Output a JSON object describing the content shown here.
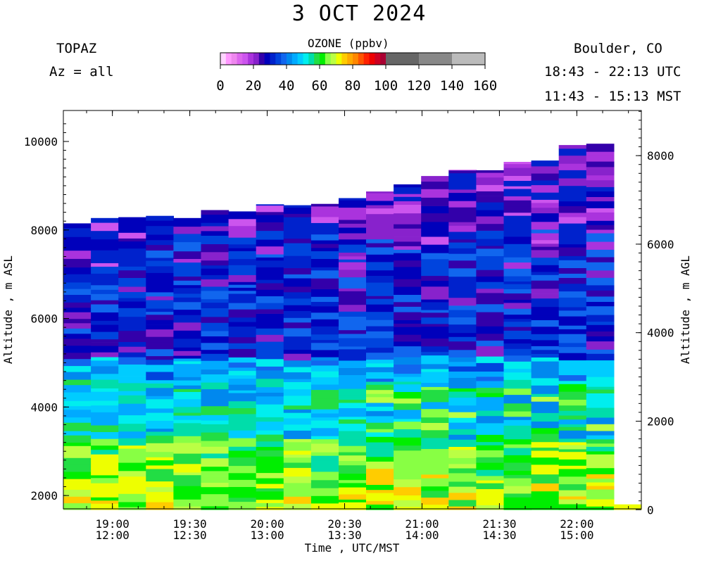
{
  "header": {
    "date": "3 OCT 2024",
    "instrument": "TOPAZ",
    "azimuth": "Az = all",
    "location": "Boulder, CO",
    "utc_range": "18:43 - 22:13 UTC",
    "mst_range": "11:43 - 15:13 MST"
  },
  "colorbar": {
    "title": "OZONE (ppbv)",
    "ticks": [
      "0",
      "20",
      "40",
      "60",
      "80",
      "100",
      "120",
      "140",
      "160"
    ],
    "colors": [
      "#ffd4ff",
      "#ff99ff",
      "#ee88ee",
      "#dd66ee",
      "#cc55ee",
      "#aa33dd",
      "#8822cc",
      "#3300aa",
      "#0000bb",
      "#0022cc",
      "#0044dd",
      "#1166ee",
      "#0088ee",
      "#00aaff",
      "#00ccff",
      "#00eeee",
      "#00ddaa",
      "#22dd44",
      "#00ee00",
      "#88ff44",
      "#bbff44",
      "#eeff00",
      "#ffcc00",
      "#ffaa00",
      "#ff8800",
      "#ff5500",
      "#ff2200",
      "#ee0000",
      "#cc0022",
      "#aa0033",
      "#666666",
      "#888888",
      "#bbbbbb"
    ]
  },
  "chart_data": {
    "type": "heatmap",
    "title": "3 OCT 2024",
    "xlabel": "Time , UTC/MST",
    "ylabel_left": "Altitude , m ASL",
    "ylabel_right": "Altitude , m AGL",
    "x_ticks": [
      {
        "utc": "19:00",
        "mst": "12:00"
      },
      {
        "utc": "19:30",
        "mst": "12:30"
      },
      {
        "utc": "20:00",
        "mst": "13:00"
      },
      {
        "utc": "20:30",
        "mst": "13:30"
      },
      {
        "utc": "21:00",
        "mst": "14:00"
      },
      {
        "utc": "21:30",
        "mst": "14:30"
      },
      {
        "utc": "22:00",
        "mst": "15:00"
      }
    ],
    "x_range_utc": [
      "18:43",
      "22:13"
    ],
    "y_left_ticks": [
      "2000",
      "4000",
      "6000",
      "8000",
      "10000"
    ],
    "y_left_range": [
      1700,
      10700
    ],
    "y_right_ticks": [
      "0",
      "2000",
      "4000",
      "6000",
      "8000"
    ],
    "surface_altitude_m_asl": 1680,
    "colorbar_range": [
      0,
      160
    ],
    "profile_tops_m_asl": [
      8150,
      8270,
      8290,
      8320,
      8270,
      8450,
      8420,
      8580,
      8560,
      8590,
      8720,
      8870,
      9030,
      9220,
      9360,
      9350,
      9540,
      9570,
      9920,
      9950,
      1800
    ],
    "ozone_ppbv_layers": [
      {
        "altitude_range_m_asl": [
          1700,
          3300
        ],
        "ozone_ppbv": "55-75"
      },
      {
        "altitude_range_m_asl": [
          3300,
          4600
        ],
        "ozone_ppbv": "45-60"
      },
      {
        "altitude_range_m_asl": [
          4600,
          5100
        ],
        "ozone_ppbv": "40-50"
      },
      {
        "altitude_range_m_asl": [
          5100,
          8000
        ],
        "ozone_ppbv": "25-40"
      },
      {
        "altitude_range_m_asl": [
          8000,
          9950
        ],
        "ozone_ppbv": "10-35"
      }
    ]
  }
}
